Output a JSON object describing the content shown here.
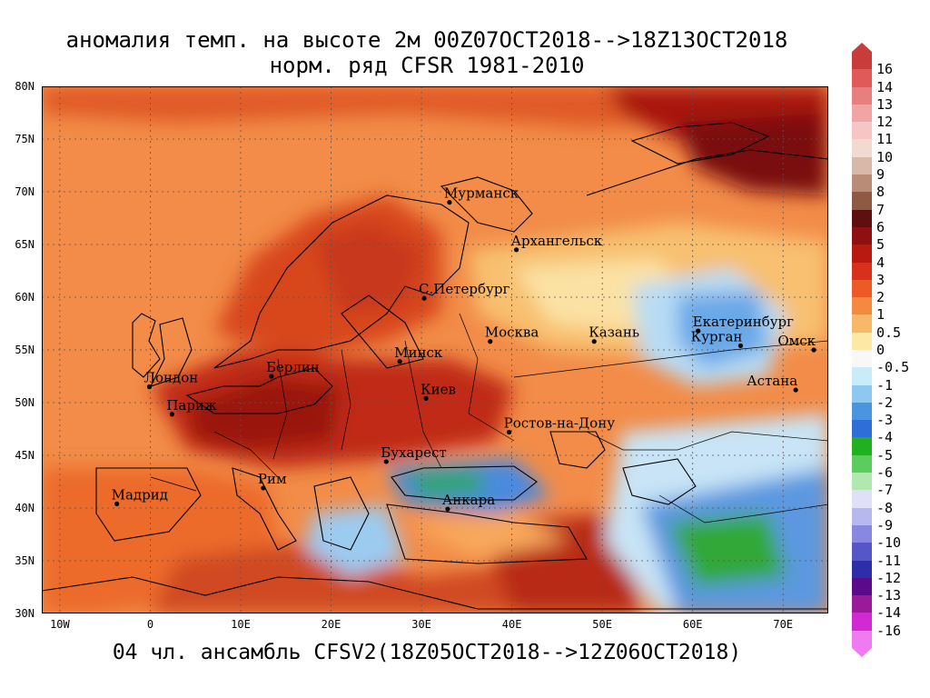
{
  "title_line1": "аномалия темп. на высоте 2м 00Z07OCT2018-->18Z13OCT2018",
  "title_line2": "норм. ряд CFSR 1981-2010",
  "footer": "04 чл. ансамбль CFSV2(18Z05OCT2018-->12Z06OCT2018)",
  "map": {
    "lon_range": [
      -12,
      75
    ],
    "lat_range": [
      30,
      80
    ],
    "lat_ticks": [
      {
        "label": "30N",
        "value": 30
      },
      {
        "label": "35N",
        "value": 35
      },
      {
        "label": "40N",
        "value": 40
      },
      {
        "label": "45N",
        "value": 45
      },
      {
        "label": "50N",
        "value": 50
      },
      {
        "label": "55N",
        "value": 55
      },
      {
        "label": "60N",
        "value": 60
      },
      {
        "label": "65N",
        "value": 65
      },
      {
        "label": "70N",
        "value": 70
      },
      {
        "label": "75N",
        "value": 75
      },
      {
        "label": "80N",
        "value": 80
      }
    ],
    "lon_ticks": [
      {
        "label": "10W",
        "value": -10
      },
      {
        "label": "0",
        "value": 0
      },
      {
        "label": "10E",
        "value": 10
      },
      {
        "label": "20E",
        "value": 20
      },
      {
        "label": "30E",
        "value": 30
      },
      {
        "label": "40E",
        "value": 40
      },
      {
        "label": "50E",
        "value": 50
      },
      {
        "label": "60E",
        "value": 60
      },
      {
        "label": "70E",
        "value": 70
      }
    ],
    "cities": [
      {
        "name": "Мурманск",
        "lon": 33.1,
        "lat": 69.0
      },
      {
        "name": "Архангельск",
        "lon": 40.5,
        "lat": 64.5
      },
      {
        "name": "С.Петербург",
        "lon": 30.3,
        "lat": 59.9
      },
      {
        "name": "Москва",
        "lon": 37.6,
        "lat": 55.8
      },
      {
        "name": "Казань",
        "lon": 49.1,
        "lat": 55.8
      },
      {
        "name": "Екатеринбург",
        "lon": 60.6,
        "lat": 56.8
      },
      {
        "name": "Курган",
        "lon": 65.3,
        "lat": 55.4
      },
      {
        "name": "Омск",
        "lon": 73.4,
        "lat": 55.0
      },
      {
        "name": "Астана",
        "lon": 71.4,
        "lat": 51.2
      },
      {
        "name": "Минск",
        "lon": 27.6,
        "lat": 53.9
      },
      {
        "name": "Берлин",
        "lon": 13.4,
        "lat": 52.5
      },
      {
        "name": "Лондон",
        "lon": -0.1,
        "lat": 51.5
      },
      {
        "name": "Париж",
        "lon": 2.4,
        "lat": 48.9
      },
      {
        "name": "Киев",
        "lon": 30.5,
        "lat": 50.4
      },
      {
        "name": "Ростов-на-Дону",
        "lon": 39.7,
        "lat": 47.2
      },
      {
        "name": "Бухарест",
        "lon": 26.1,
        "lat": 44.4
      },
      {
        "name": "Рим",
        "lon": 12.5,
        "lat": 41.9
      },
      {
        "name": "Мадрид",
        "lon": -3.7,
        "lat": 40.4
      },
      {
        "name": "Анкара",
        "lon": 32.9,
        "lat": 39.9
      }
    ]
  },
  "legend": {
    "labels": [
      "16",
      "14",
      "13",
      "12",
      "11",
      "10",
      "9",
      "8",
      "7",
      "6",
      "5",
      "4",
      "3",
      "2",
      "1",
      "0.5",
      "0",
      "-0.5",
      "-1",
      "-2",
      "-3",
      "-4",
      "-5",
      "-6",
      "-7",
      "-8",
      "-9",
      "-10",
      "-11",
      "-12",
      "-13",
      "-14",
      "-16"
    ],
    "colors": [
      "#c83c3c",
      "#e05a5a",
      "#e87f7f",
      "#f0a4a4",
      "#f6c6c6",
      "#f3dad0",
      "#d8b8a8",
      "#b88c76",
      "#8e5a44",
      "#5e1010",
      "#8e1010",
      "#b81a10",
      "#d8301a",
      "#ec5a28",
      "#f48a40",
      "#f8b868",
      "#fde8a6",
      "#f8f8f8",
      "#c8ecf8",
      "#8cc8f0",
      "#4a94e0",
      "#2e6ed8",
      "#20b020",
      "#5ccc5c",
      "#b0e8b0",
      "#e0e0f8",
      "#b8b8f0",
      "#8888e0",
      "#5656c8",
      "#2e2ea8",
      "#5a0a8a",
      "#9a1a9a",
      "#d02ad0",
      "#f07af0"
    ]
  }
}
